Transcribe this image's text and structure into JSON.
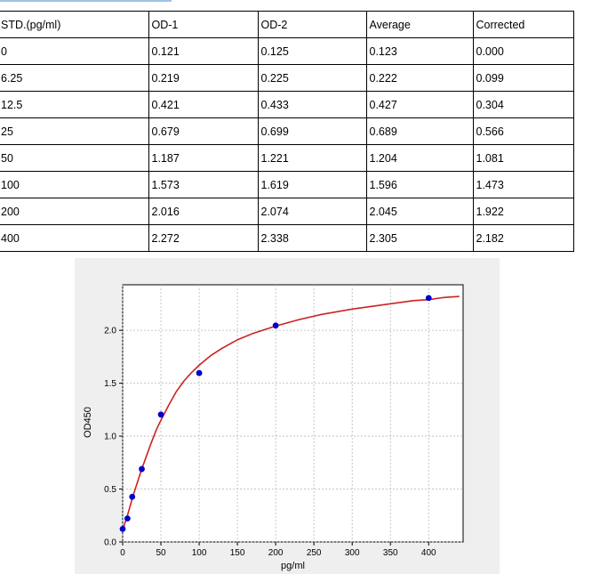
{
  "table": {
    "headers": [
      "STD.(pg/ml)",
      "OD-1",
      "OD-2",
      "Average",
      "Corrected"
    ],
    "rows": [
      [
        "0",
        "0.121",
        "0.125",
        "0.123",
        "0.000"
      ],
      [
        "6.25",
        "0.219",
        "0.225",
        "0.222",
        "0.099"
      ],
      [
        "12.5",
        "0.421",
        "0.433",
        "0.427",
        "0.304"
      ],
      [
        "25",
        "0.679",
        "0.699",
        "0.689",
        "0.566"
      ],
      [
        "50",
        "1.187",
        "1.221",
        "1.204",
        "1.081"
      ],
      [
        "100",
        "1.573",
        "1.619",
        "1.596",
        "1.473"
      ],
      [
        "200",
        "2.016",
        "2.074",
        "2.045",
        "1.922"
      ],
      [
        "400",
        "2.272",
        "2.338",
        "2.305",
        "2.182"
      ]
    ]
  },
  "chart_data": {
    "type": "scatter",
    "xlabel": "pg/ml",
    "ylabel": "OD450",
    "xlim": [
      0,
      445
    ],
    "ylim": [
      0,
      2.43
    ],
    "xticks": [
      0,
      50,
      100,
      150,
      200,
      250,
      300,
      350,
      400
    ],
    "yticks": [
      0.0,
      0.5,
      1.0,
      1.5,
      2.0
    ],
    "grid": true,
    "series": [
      {
        "type": "scatter",
        "color": "#0000cc",
        "x": [
          0,
          6.25,
          12.5,
          25,
          50,
          100,
          200,
          400
        ],
        "y": [
          0.123,
          0.222,
          0.427,
          0.689,
          1.204,
          1.596,
          2.045,
          2.305
        ]
      },
      {
        "type": "line",
        "color": "#cc2222",
        "x": [
          0,
          3,
          6.25,
          9,
          12.5,
          16,
          20,
          25,
          30,
          37,
          44,
          50,
          60,
          70,
          80,
          90,
          100,
          115,
          130,
          150,
          170,
          200,
          230,
          260,
          300,
          340,
          380,
          400,
          420,
          440
        ],
        "y": [
          0.11,
          0.18,
          0.25,
          0.32,
          0.41,
          0.49,
          0.58,
          0.69,
          0.79,
          0.93,
          1.06,
          1.15,
          1.29,
          1.42,
          1.52,
          1.6,
          1.67,
          1.76,
          1.83,
          1.91,
          1.97,
          2.04,
          2.1,
          2.15,
          2.2,
          2.24,
          2.28,
          2.29,
          2.31,
          2.32
        ]
      }
    ]
  }
}
